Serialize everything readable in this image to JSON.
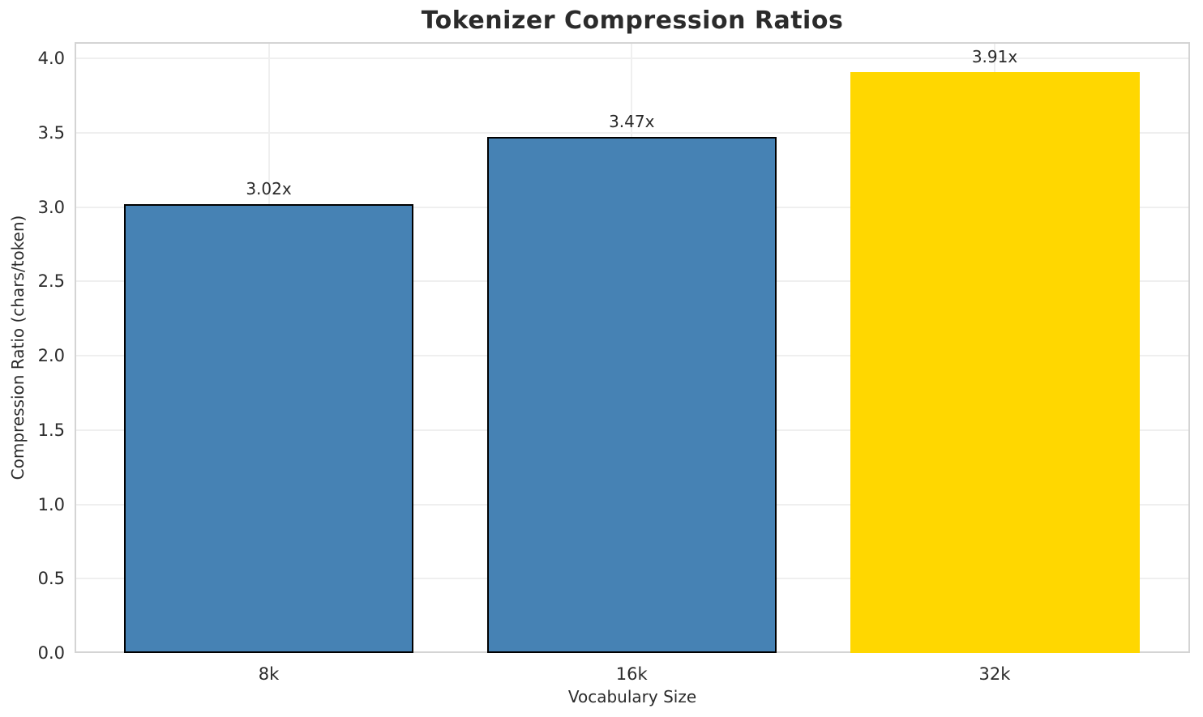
{
  "chart_data": {
    "type": "bar",
    "title": "Tokenizer Compression Ratios",
    "xlabel": "Vocabulary Size",
    "ylabel": "Compression Ratio (chars/token)",
    "categories": [
      "8k",
      "16k",
      "32k"
    ],
    "values": [
      3.02,
      3.47,
      3.91
    ],
    "bar_labels": [
      "3.02x",
      "3.47x",
      "3.91x"
    ],
    "bar_colors": [
      "#4682B4",
      "#4682B4",
      "#FFD700"
    ],
    "bar_edge_colors": [
      "#000000",
      "#000000",
      "#FFD700"
    ],
    "ylim": [
      0.0,
      4.1
    ],
    "yticks": [
      0.0,
      0.5,
      1.0,
      1.5,
      2.0,
      2.5,
      3.0,
      3.5,
      4.0
    ],
    "ytick_labels": [
      "0.0",
      "0.5",
      "1.0",
      "1.5",
      "2.0",
      "2.5",
      "3.0",
      "3.5",
      "4.0"
    ],
    "grid": true,
    "legend_position": "none"
  },
  "colors": {
    "grid": "#efefef",
    "spine": "#d4d4d4",
    "text": "#2b2b2b",
    "background": "#ffffff"
  }
}
